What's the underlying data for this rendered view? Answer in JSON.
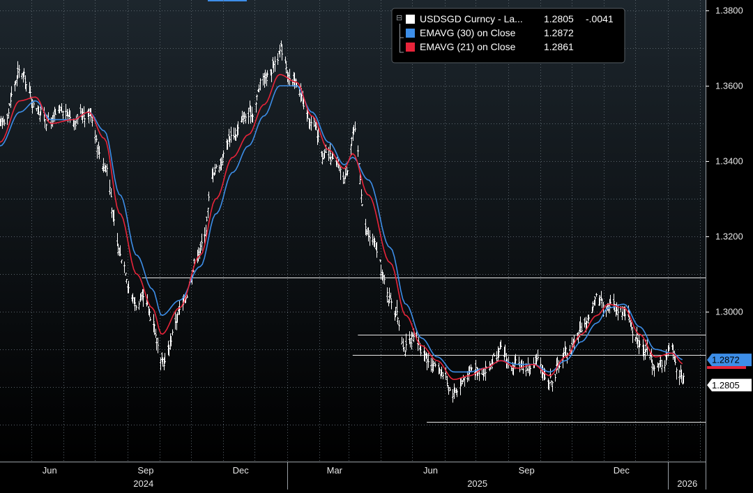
{
  "chart_data": {
    "type": "ohlc",
    "ylim": [
      1.265,
      1.381
    ],
    "y_ticks": [
      {
        "value": 1.38,
        "label": "1.3800"
      },
      {
        "value": 1.36,
        "label": "1.3600"
      },
      {
        "value": 1.34,
        "label": "1.3400"
      },
      {
        "value": 1.32,
        "label": "1.3200"
      },
      {
        "value": 1.3,
        "label": "1.3000"
      }
    ],
    "x_ticks": [
      {
        "label": "Jun",
        "at": "2024-06"
      },
      {
        "label": "Sep",
        "at": "2024-09"
      },
      {
        "label": "Dec",
        "at": "2024-12"
      },
      {
        "label": "Mar",
        "at": "2025-03"
      },
      {
        "label": "Jun",
        "at": "2025-06"
      },
      {
        "label": "Sep",
        "at": "2025-09"
      },
      {
        "label": "Dec",
        "at": "2025-12"
      }
    ],
    "year_labels": [
      {
        "label": "2024"
      },
      {
        "label": "2025"
      },
      {
        "label": "2026"
      }
    ],
    "legend": {
      "position": "top-right",
      "items": [
        {
          "name": "USDSGD Curncy - La...",
          "value": "1.2805",
          "change": "-.0041",
          "color": "#ffffff"
        },
        {
          "name": "EMAVG (30)  on Close",
          "value": "1.2872",
          "change": "",
          "color": "#3d8ee8"
        },
        {
          "name": "EMAVG (21)  on Close",
          "value": "1.2861",
          "change": "",
          "color": "#e8243a"
        }
      ]
    },
    "price_tags": [
      {
        "label": "1.2872",
        "value": 1.2872,
        "style": "blue"
      },
      {
        "label": "1.2805",
        "value": 1.2805,
        "style": "white"
      }
    ],
    "series": [
      {
        "name": "USDSGD Curncy - La...",
        "color": "#ffffff",
        "x": [
          "2024-04-01",
          "2024-04-20",
          "2024-05-05",
          "2024-05-20",
          "2024-06-10",
          "2024-06-25",
          "2024-07-10",
          "2024-07-25",
          "2024-08-10",
          "2024-08-25",
          "2024-09-03",
          "2024-09-20",
          "2024-10-10",
          "2024-10-25",
          "2024-11-10",
          "2024-11-25",
          "2024-12-10",
          "2024-12-25",
          "2025-01-10",
          "2025-01-25",
          "2025-02-10",
          "2025-02-25",
          "2025-03-05",
          "2025-03-20",
          "2025-04-10",
          "2025-04-25",
          "2025-05-10",
          "2025-05-25",
          "2025-06-10",
          "2025-06-25",
          "2025-07-10",
          "2025-07-25",
          "2025-08-10",
          "2025-08-25",
          "2025-09-10",
          "2025-09-25",
          "2025-10-10",
          "2025-10-25",
          "2025-11-05",
          "2025-11-20",
          "2025-12-05",
          "2025-12-20",
          "2026-01-05",
          "2026-01-16"
        ],
        "y": [
          1.349,
          1.363,
          1.355,
          1.351,
          1.352,
          1.354,
          1.34,
          1.315,
          1.303,
          1.298,
          1.285,
          1.3,
          1.318,
          1.339,
          1.348,
          1.352,
          1.362,
          1.369,
          1.36,
          1.349,
          1.34,
          1.335,
          1.348,
          1.32,
          1.304,
          1.292,
          1.29,
          1.286,
          1.28,
          1.284,
          1.286,
          1.288,
          1.284,
          1.286,
          1.283,
          1.289,
          1.296,
          1.303,
          1.303,
          1.301,
          1.293,
          1.285,
          1.289,
          1.2805
        ]
      },
      {
        "name": "EMAVG (30)  on Close",
        "color": "#3d8ee8",
        "x": [
          "2024-04-01",
          "2024-04-20",
          "2024-05-05",
          "2024-05-20",
          "2024-06-10",
          "2024-06-25",
          "2024-07-10",
          "2024-07-25",
          "2024-08-10",
          "2024-08-25",
          "2024-09-03",
          "2024-09-20",
          "2024-10-10",
          "2024-10-25",
          "2024-11-10",
          "2024-11-25",
          "2024-12-10",
          "2024-12-25",
          "2025-01-10",
          "2025-01-25",
          "2025-02-10",
          "2025-02-25",
          "2025-03-05",
          "2025-03-20",
          "2025-04-10",
          "2025-04-25",
          "2025-05-10",
          "2025-05-25",
          "2025-06-10",
          "2025-06-25",
          "2025-07-10",
          "2025-07-25",
          "2025-08-10",
          "2025-08-25",
          "2025-09-10",
          "2025-09-25",
          "2025-10-10",
          "2025-10-25",
          "2025-11-05",
          "2025-11-20",
          "2025-12-05",
          "2025-12-20",
          "2026-01-05",
          "2026-01-16"
        ],
        "y": [
          1.344,
          1.353,
          1.356,
          1.351,
          1.351,
          1.353,
          1.348,
          1.331,
          1.315,
          1.306,
          1.299,
          1.303,
          1.312,
          1.326,
          1.337,
          1.344,
          1.352,
          1.36,
          1.36,
          1.353,
          1.345,
          1.339,
          1.341,
          1.335,
          1.317,
          1.302,
          1.293,
          1.288,
          1.284,
          1.284,
          1.285,
          1.287,
          1.286,
          1.286,
          1.284,
          1.287,
          1.292,
          1.297,
          1.301,
          1.302,
          1.296,
          1.29,
          1.289,
          1.2872
        ]
      },
      {
        "name": "EMAVG (21)  on Close",
        "color": "#e8243a",
        "x": [
          "2024-04-01",
          "2024-04-20",
          "2024-05-05",
          "2024-05-20",
          "2024-06-10",
          "2024-06-25",
          "2024-07-10",
          "2024-07-25",
          "2024-08-10",
          "2024-08-25",
          "2024-09-03",
          "2024-09-20",
          "2024-10-10",
          "2024-10-25",
          "2024-11-10",
          "2024-11-25",
          "2024-12-10",
          "2024-12-25",
          "2025-01-10",
          "2025-01-25",
          "2025-02-10",
          "2025-02-25",
          "2025-03-05",
          "2025-03-20",
          "2025-04-10",
          "2025-04-25",
          "2025-05-10",
          "2025-05-25",
          "2025-06-10",
          "2025-06-25",
          "2025-07-10",
          "2025-07-25",
          "2025-08-10",
          "2025-08-25",
          "2025-09-10",
          "2025-09-25",
          "2025-10-10",
          "2025-10-25",
          "2025-11-05",
          "2025-11-20",
          "2025-12-05",
          "2025-12-20",
          "2026-01-05",
          "2026-01-16"
        ],
        "y": [
          1.345,
          1.356,
          1.357,
          1.35,
          1.351,
          1.353,
          1.346,
          1.326,
          1.31,
          1.301,
          1.294,
          1.301,
          1.315,
          1.33,
          1.341,
          1.347,
          1.355,
          1.363,
          1.361,
          1.352,
          1.343,
          1.338,
          1.342,
          1.331,
          1.313,
          1.299,
          1.291,
          1.287,
          1.282,
          1.283,
          1.285,
          1.287,
          1.285,
          1.286,
          1.283,
          1.288,
          1.294,
          1.299,
          1.302,
          1.301,
          1.294,
          1.288,
          1.289,
          1.2861
        ]
      }
    ],
    "reference_lines": [
      {
        "value": 1.309,
        "from": "2024-08-15",
        "to": "2026-02-10"
      },
      {
        "value": 1.2939,
        "from": "2025-03-10",
        "to": "2026-02-10"
      },
      {
        "value": 1.2885,
        "from": "2025-03-05",
        "to": "2026-02-10"
      },
      {
        "value": 1.2708,
        "from": "2025-05-15",
        "to": "2026-02-10"
      }
    ],
    "grid": true
  }
}
